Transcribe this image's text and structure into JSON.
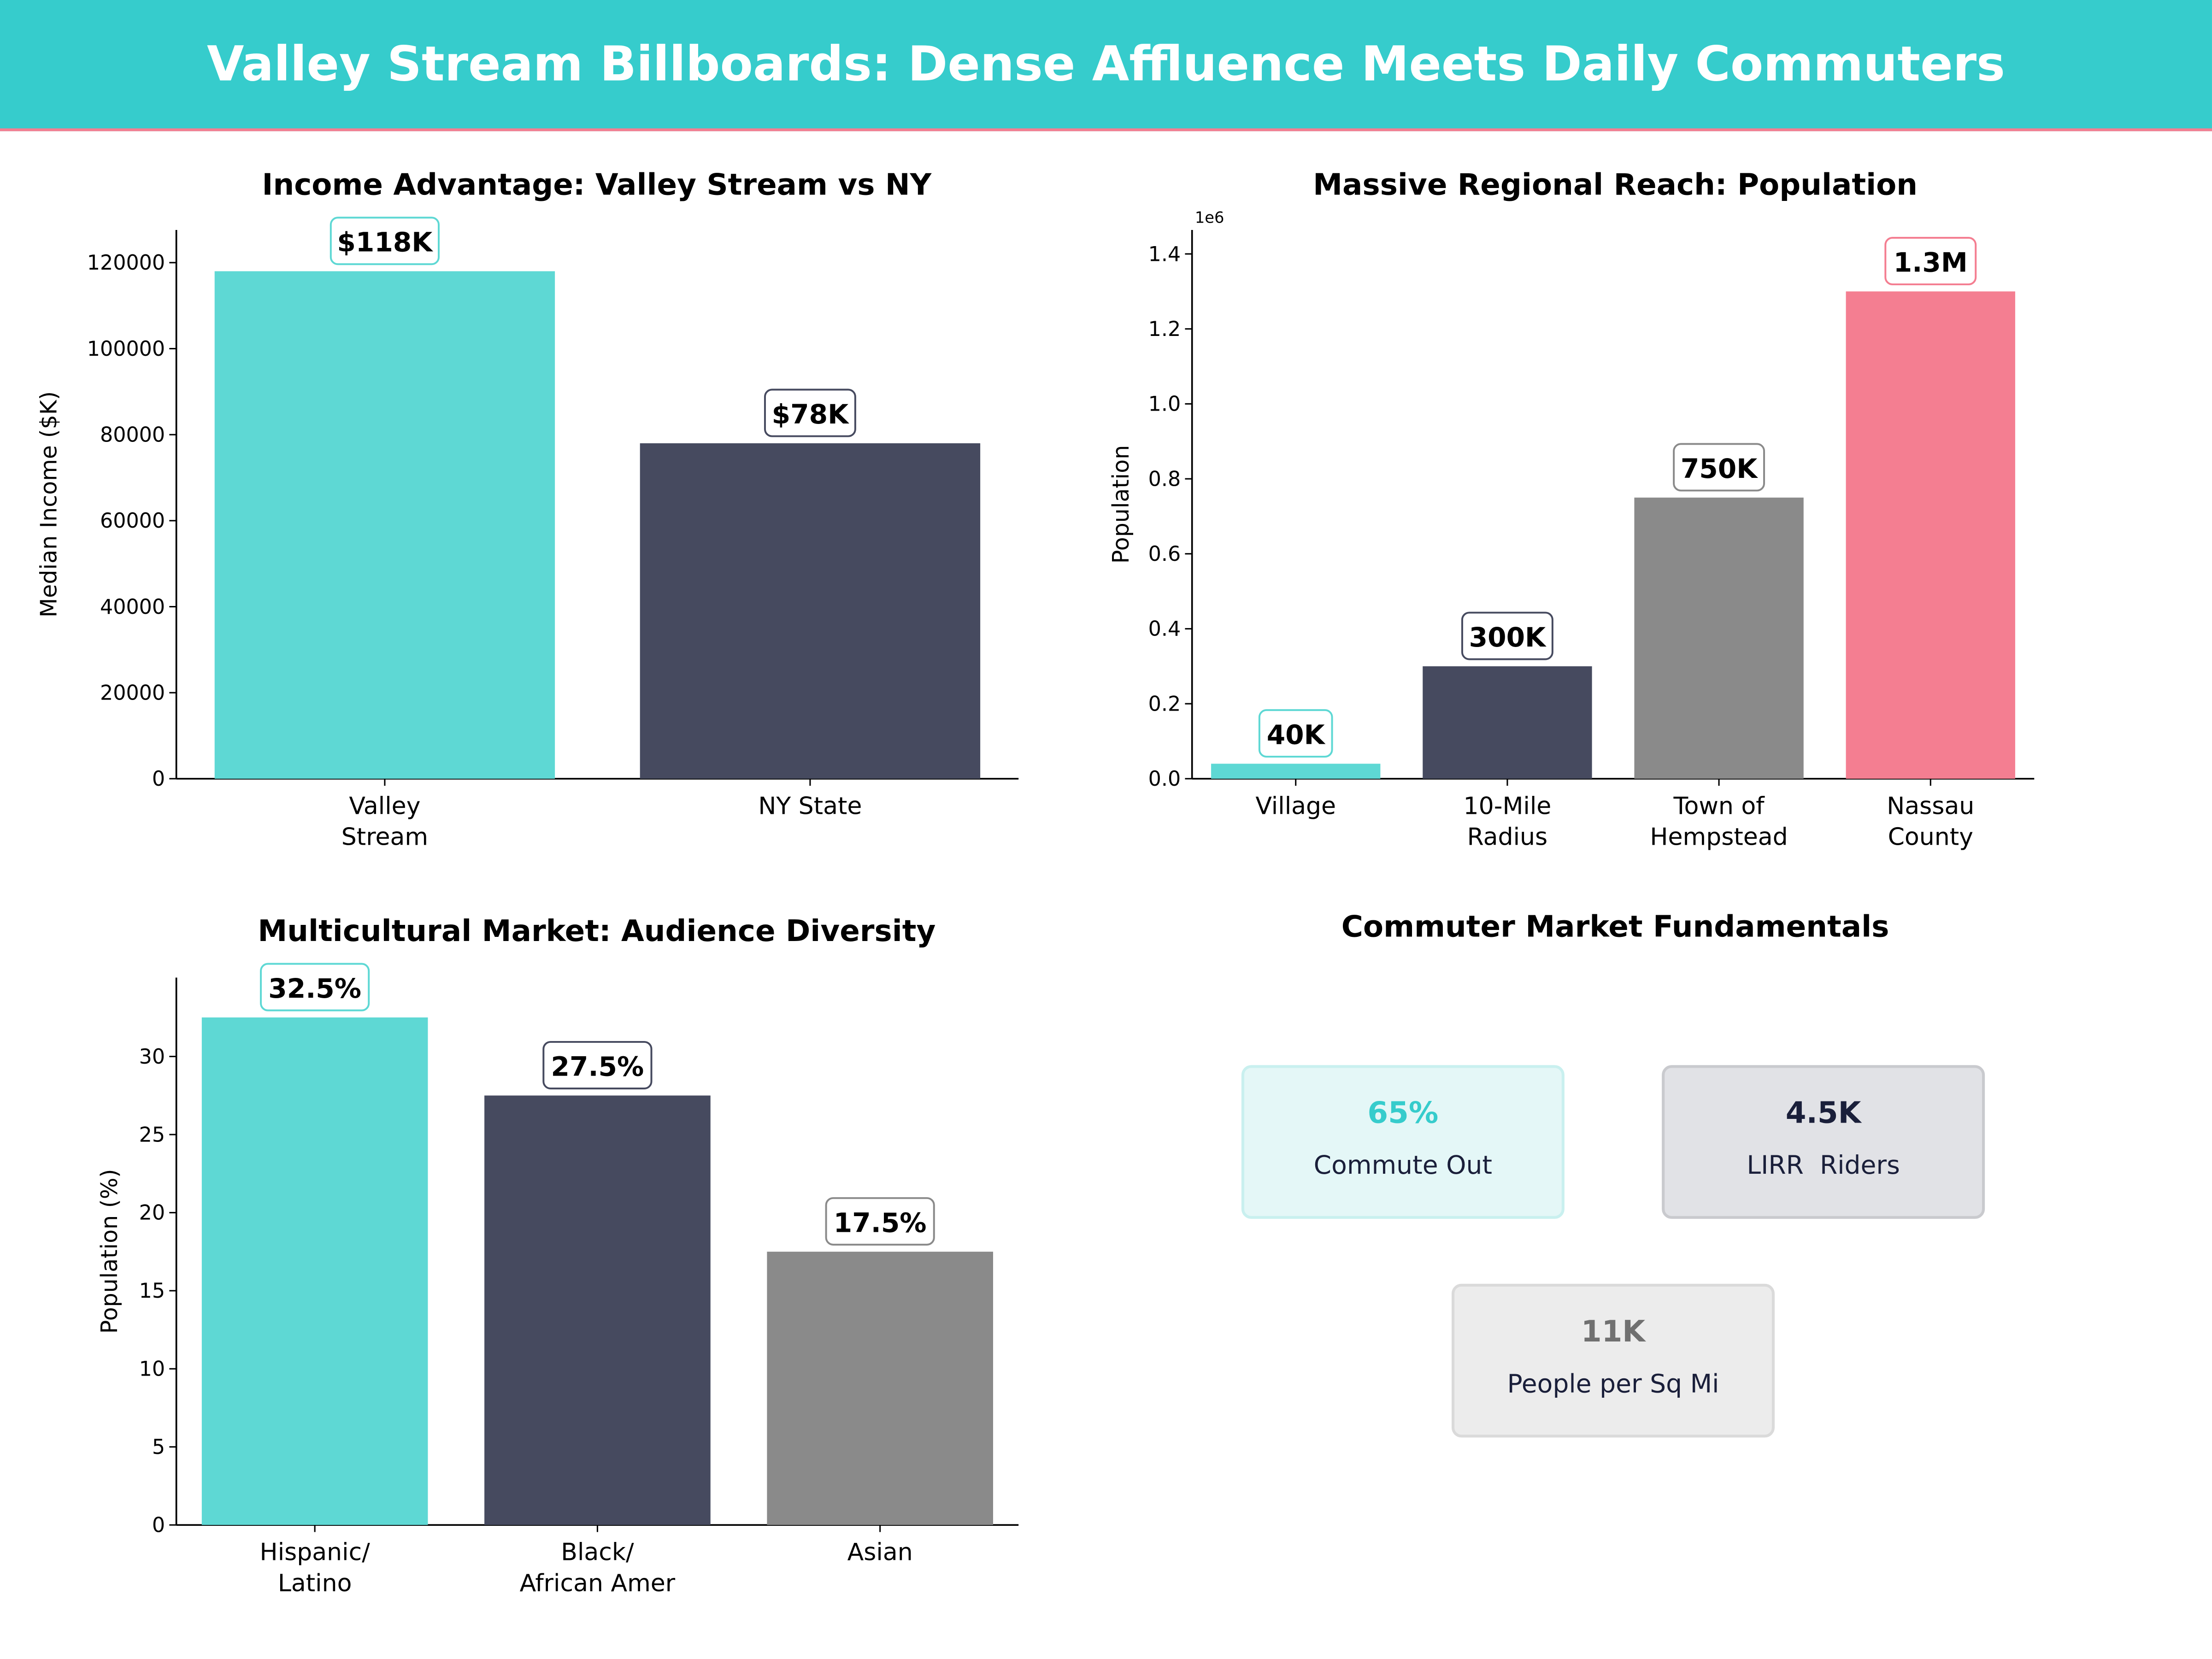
{
  "header": {
    "title": "Valley Stream Billboards: Dense Affluence Meets Daily Commuters"
  },
  "colors": {
    "teal": "#5ED8D4",
    "dark": "#464A5F",
    "gray": "#8A8A8A",
    "pink": "#F47E91",
    "header": "#36CCCC"
  },
  "chart_data": [
    {
      "type": "bar",
      "title": "Income Advantage: Valley Stream vs NY",
      "ylabel": "Median Income ($K)",
      "xlabel": "",
      "categories": [
        "Valley\nStream",
        "NY State"
      ],
      "values": [
        118000,
        78000
      ],
      "data_labels": [
        "$118K",
        "$78K"
      ],
      "bar_colors": [
        "#5ED8D4",
        "#464A5F"
      ],
      "label_border_colors": [
        "#5ED8D4",
        "#464A5F"
      ],
      "ylim": [
        0,
        127600
      ],
      "yticks": [
        0,
        20000,
        40000,
        60000,
        80000,
        100000,
        120000
      ],
      "ytick_labels": [
        "0",
        "20000",
        "40000",
        "60000",
        "80000",
        "100000",
        "120000"
      ],
      "grid": false
    },
    {
      "type": "bar",
      "title": "Massive Regional Reach: Population",
      "ylabel": "Population",
      "xlabel": "",
      "offset_text": "1e6",
      "categories": [
        "Village",
        "10-Mile\nRadius",
        "Town of\nHempstead",
        "Nassau\nCounty"
      ],
      "values": [
        40000,
        300000,
        750000,
        1300000
      ],
      "data_labels": [
        "40K",
        "300K",
        "750K",
        "1.3M"
      ],
      "bar_colors": [
        "#5ED8D4",
        "#464A5F",
        "#8A8A8A",
        "#F47E91"
      ],
      "label_border_colors": [
        "#5ED8D4",
        "#464A5F",
        "#8A8A8A",
        "#F47E91"
      ],
      "ylim": [
        0,
        1464000
      ],
      "yticks": [
        0,
        200000,
        400000,
        600000,
        800000,
        1000000,
        1200000,
        1400000
      ],
      "ytick_labels": [
        "0.0",
        "0.2",
        "0.4",
        "0.6",
        "0.8",
        "1.0",
        "1.2",
        "1.4"
      ],
      "grid": false
    },
    {
      "type": "bar",
      "title": "Multicultural Market: Audience Diversity",
      "ylabel": "Population (%)",
      "xlabel": "",
      "categories": [
        "Hispanic/\nLatino",
        "Black/\nAfrican Amer",
        "Asian"
      ],
      "values": [
        32.5,
        27.5,
        17.5
      ],
      "data_labels": [
        "32.5%",
        "27.5%",
        "17.5%"
      ],
      "bar_colors": [
        "#5ED8D4",
        "#464A5F",
        "#8A8A8A"
      ],
      "label_border_colors": [
        "#5ED8D4",
        "#464A5F",
        "#8A8A8A"
      ],
      "ylim": [
        0,
        35.05
      ],
      "yticks": [
        0,
        5,
        10,
        15,
        20,
        25,
        30
      ],
      "ytick_labels": [
        "0",
        "5",
        "10",
        "15",
        "20",
        "25",
        "30"
      ],
      "grid": false
    }
  ],
  "fundamentals": {
    "title": "Commuter Market Fundamentals",
    "cards": [
      {
        "value": "65%",
        "label": "Commute Out",
        "value_color": "#36CCCC",
        "bg": "#E4F7F7",
        "border": "#C9F0EF"
      },
      {
        "value": "4.5K",
        "label": "LIRR  Riders",
        "value_color": "#1A1F3A",
        "bg": "#E1E2E6",
        "border": "#C9CACE"
      },
      {
        "value": "11K",
        "label": "People per Sq Mi",
        "value_color": "#707070",
        "bg": "#ECECEC",
        "border": "#DADADA"
      }
    ]
  }
}
